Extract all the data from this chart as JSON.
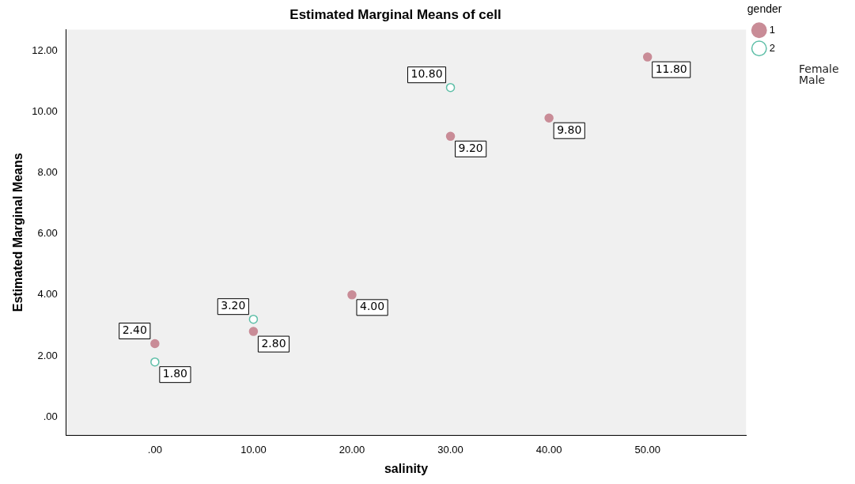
{
  "chart_data": {
    "type": "scatter",
    "title": "Estimated Marginal Means of cell",
    "xlabel": "salinity",
    "ylabel": "Estimated Marginal Means",
    "legend_title": "gender",
    "legend": "right",
    "grid": false,
    "marker": "circle",
    "xlim": [
      -9,
      60
    ],
    "ylim": [
      -0.6,
      12.7
    ],
    "xticks": [
      {
        "value": 0,
        "label": ".00"
      },
      {
        "value": 10,
        "label": "10.00"
      },
      {
        "value": 20,
        "label": "20.00"
      },
      {
        "value": 30,
        "label": "30.00"
      },
      {
        "value": 40,
        "label": "40.00"
      },
      {
        "value": 50,
        "label": "50.00"
      }
    ],
    "yticks": [
      {
        "value": 0,
        "label": ".00"
      },
      {
        "value": 2,
        "label": "2.00"
      },
      {
        "value": 4,
        "label": "4.00"
      },
      {
        "value": 6,
        "label": "6.00"
      },
      {
        "value": 8,
        "label": "8.00"
      },
      {
        "value": 10,
        "label": "10.00"
      },
      {
        "value": 12,
        "label": "12.00"
      }
    ],
    "series": [
      {
        "name": "1",
        "color": "#c98c97",
        "x": [
          0,
          10,
          20,
          30,
          40,
          50
        ],
        "values": [
          2.4,
          2.8,
          4.0,
          9.2,
          9.8,
          11.8
        ],
        "value_labels": [
          "2.40",
          "2.80",
          "4.00",
          "9.20",
          "9.80",
          "11.80"
        ]
      },
      {
        "name": "2",
        "color": "#5fbfa8",
        "x": [
          0,
          10,
          30
        ],
        "values": [
          1.8,
          3.2,
          10.8
        ],
        "value_labels": [
          "1.80",
          "3.20",
          "10.80"
        ]
      }
    ],
    "annotations": [
      "Female",
      "Male"
    ]
  }
}
